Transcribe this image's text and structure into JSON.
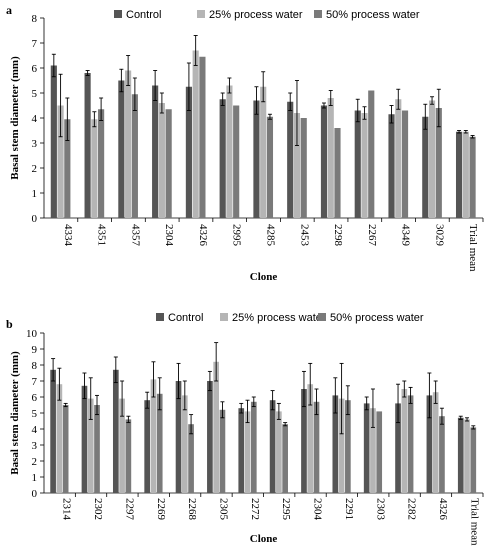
{
  "chart_data": [
    {
      "panel_label": "a",
      "type": "bar",
      "xlabel": "Clone",
      "ylabel": "Basal stem diameter (mm)",
      "ylim": [
        0,
        8
      ],
      "yticks": [
        0,
        1,
        2,
        3,
        4,
        5,
        6,
        7,
        8
      ],
      "legend_position": "top",
      "categories": [
        "4334",
        "4351",
        "4357",
        "2304",
        "4326",
        "2995",
        "4285",
        "2453",
        "2298",
        "2267",
        "4349",
        "3029",
        "Trial mean"
      ],
      "series": [
        {
          "name": "Control",
          "color": "#555555",
          "values": [
            6.1,
            5.8,
            5.5,
            5.3,
            5.25,
            4.75,
            4.7,
            4.65,
            4.5,
            4.3,
            4.15,
            4.05,
            3.45
          ],
          "errors": [
            0.45,
            0.1,
            0.45,
            0.6,
            0.95,
            0.25,
            0.55,
            0.35,
            0.1,
            0.45,
            0.35,
            0.5,
            0.05
          ]
        },
        {
          "name": "25% process water",
          "color": "#b5b5b5",
          "values": [
            4.5,
            3.95,
            5.9,
            4.6,
            6.7,
            5.3,
            5.25,
            4.2,
            4.8,
            4.2,
            4.75,
            4.7,
            3.45
          ],
          "errors": [
            1.25,
            0.3,
            0.6,
            0.4,
            0.6,
            0.3,
            0.6,
            1.3,
            0.3,
            0.25,
            0.4,
            0.15,
            0.05
          ]
        },
        {
          "name": "50% process water",
          "color": "#7a7a7a",
          "values": [
            3.95,
            4.35,
            4.95,
            4.35,
            6.45,
            4.5,
            4.05,
            4.0,
            3.6,
            5.1,
            4.3,
            4.4,
            3.25
          ],
          "errors": [
            0.85,
            0.45,
            0.65,
            0.0,
            0.0,
            0.0,
            0.1,
            0.0,
            0.0,
            0.0,
            0.0,
            0.75,
            0.05
          ]
        }
      ]
    },
    {
      "panel_label": "b",
      "type": "bar",
      "xlabel": "Clone",
      "ylabel": "Basal stem diameter (mm)",
      "ylim": [
        0,
        10
      ],
      "yticks": [
        0,
        1,
        2,
        3,
        4,
        5,
        6,
        7,
        8,
        9,
        10
      ],
      "legend_position": "top",
      "categories": [
        "2314",
        "2302",
        "2297",
        "2269",
        "2268",
        "2305",
        "2272",
        "2295",
        "2304",
        "2291",
        "2303",
        "2282",
        "4326",
        "Trial mean"
      ],
      "series": [
        {
          "name": "Control",
          "color": "#555555",
          "values": [
            7.7,
            6.7,
            7.7,
            5.8,
            7.0,
            7.0,
            5.3,
            5.8,
            6.5,
            6.1,
            5.6,
            5.6,
            6.1,
            4.7
          ],
          "errors": [
            0.7,
            0.8,
            0.8,
            0.5,
            1.1,
            0.6,
            0.3,
            0.6,
            1.1,
            1.1,
            0.4,
            1.2,
            1.4,
            0.1
          ]
        },
        {
          "name": "25% process water",
          "color": "#b5b5b5",
          "values": [
            6.8,
            5.9,
            5.9,
            7.1,
            6.1,
            8.2,
            5.1,
            5.1,
            6.8,
            5.9,
            5.3,
            6.5,
            6.3,
            4.6
          ],
          "errors": [
            1.0,
            1.3,
            1.1,
            1.1,
            0.9,
            1.2,
            0.7,
            0.5,
            1.3,
            2.2,
            1.2,
            0.5,
            0.7,
            0.1
          ]
        },
        {
          "name": "50% process water",
          "color": "#7a7a7a",
          "values": [
            5.5,
            5.5,
            4.6,
            6.2,
            4.3,
            5.2,
            5.7,
            4.3,
            5.7,
            5.8,
            5.1,
            6.1,
            4.8,
            4.1
          ],
          "errors": [
            0.1,
            0.6,
            0.2,
            1.0,
            0.6,
            0.5,
            0.3,
            0.1,
            0.8,
            0.9,
            0.0,
            0.5,
            0.5,
            0.1
          ]
        }
      ]
    }
  ]
}
